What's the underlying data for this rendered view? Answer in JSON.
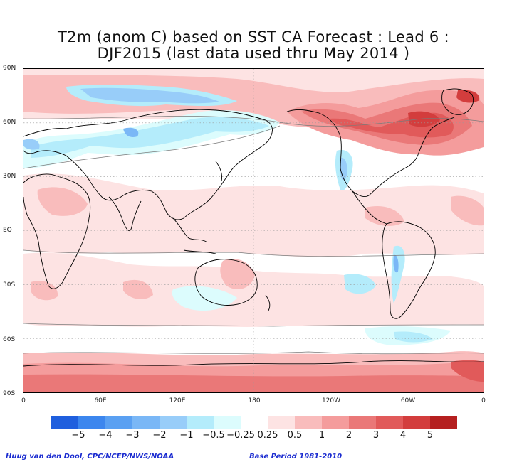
{
  "title": {
    "line1": "T2m (anom C) based on SST CA Forecast : Lead 6 :",
    "line2": "DJF2015 (last data used thru May 2014 )"
  },
  "map": {
    "lat_labels": [
      "90N",
      "60N",
      "30N",
      "EQ",
      "30S",
      "60S",
      "90S"
    ],
    "lon_labels": [
      "0",
      "60E",
      "120E",
      "180",
      "120W",
      "60W",
      "0"
    ],
    "lat_values": [
      90,
      60,
      30,
      0,
      -30,
      -60,
      -90
    ],
    "lon_values": [
      0,
      60,
      120,
      180,
      240,
      300,
      360
    ],
    "gridlines": "dotted",
    "colors": {
      "coast": "#000000",
      "grid": "#9a9a9a",
      "contour": "#7a7a7a"
    }
  },
  "colorbar": {
    "colors": [
      "#1f5fde",
      "#3c86ee",
      "#5aa0f2",
      "#7ab7f6",
      "#98cdf9",
      "#b4ecfb",
      "#dcfcfd",
      "#ffffff",
      "#fde3e3",
      "#f9bcbc",
      "#f49c9c",
      "#ea7878",
      "#e15a5a",
      "#d33d3d",
      "#b51f1f"
    ],
    "labels": [
      "−5",
      "−4",
      "−3",
      "−2",
      "−1",
      "−0.5",
      "−0.25",
      "0.25",
      "0.5",
      "1",
      "2",
      "3",
      "4",
      "5"
    ]
  },
  "footer": {
    "credit": "Huug van den Dool, CPC/NCEP/NWS/NOAA",
    "base_period": "Base Period 1981-2010"
  }
}
